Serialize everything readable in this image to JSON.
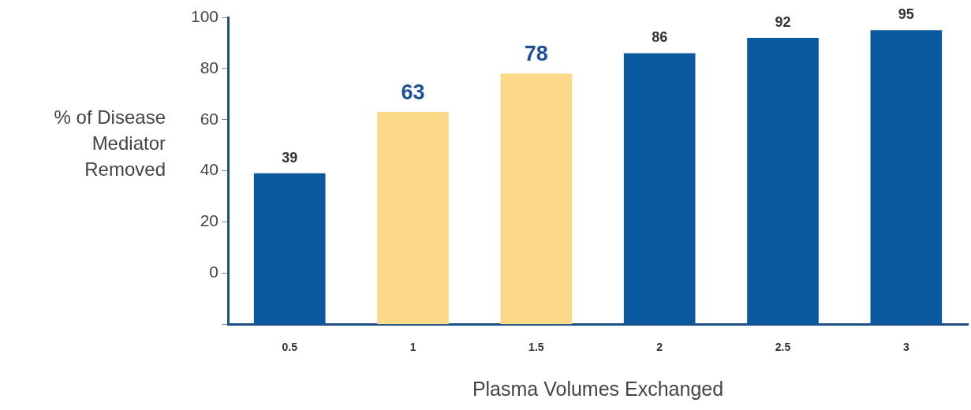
{
  "chart_data": {
    "type": "bar",
    "xlabel": "Plasma Volumes Exchanged",
    "ylabel": "% of Disease Mediator Removed",
    "categories": [
      "0.5",
      "1",
      "1.5",
      "2",
      "2.5",
      "3"
    ],
    "base": [
      -20,
      -20,
      -20,
      -20,
      -20,
      -20
    ],
    "values": [
      59,
      83,
      98,
      106,
      112,
      115
    ],
    "value_labels": [
      "39",
      "63",
      "78",
      "86",
      "92",
      "95"
    ],
    "colors": [
      "#0b5aa0",
      "#fcd889",
      "#fcd889",
      "#0b5aa0",
      "#0b5aa0",
      "#0b5aa0"
    ],
    "ylim": [
      -20,
      100
    ],
    "yticks": [
      {
        "value": -20,
        "label": null
      },
      0,
      20,
      40,
      60,
      80,
      100
    ],
    "grid": false,
    "legend": false
  }
}
